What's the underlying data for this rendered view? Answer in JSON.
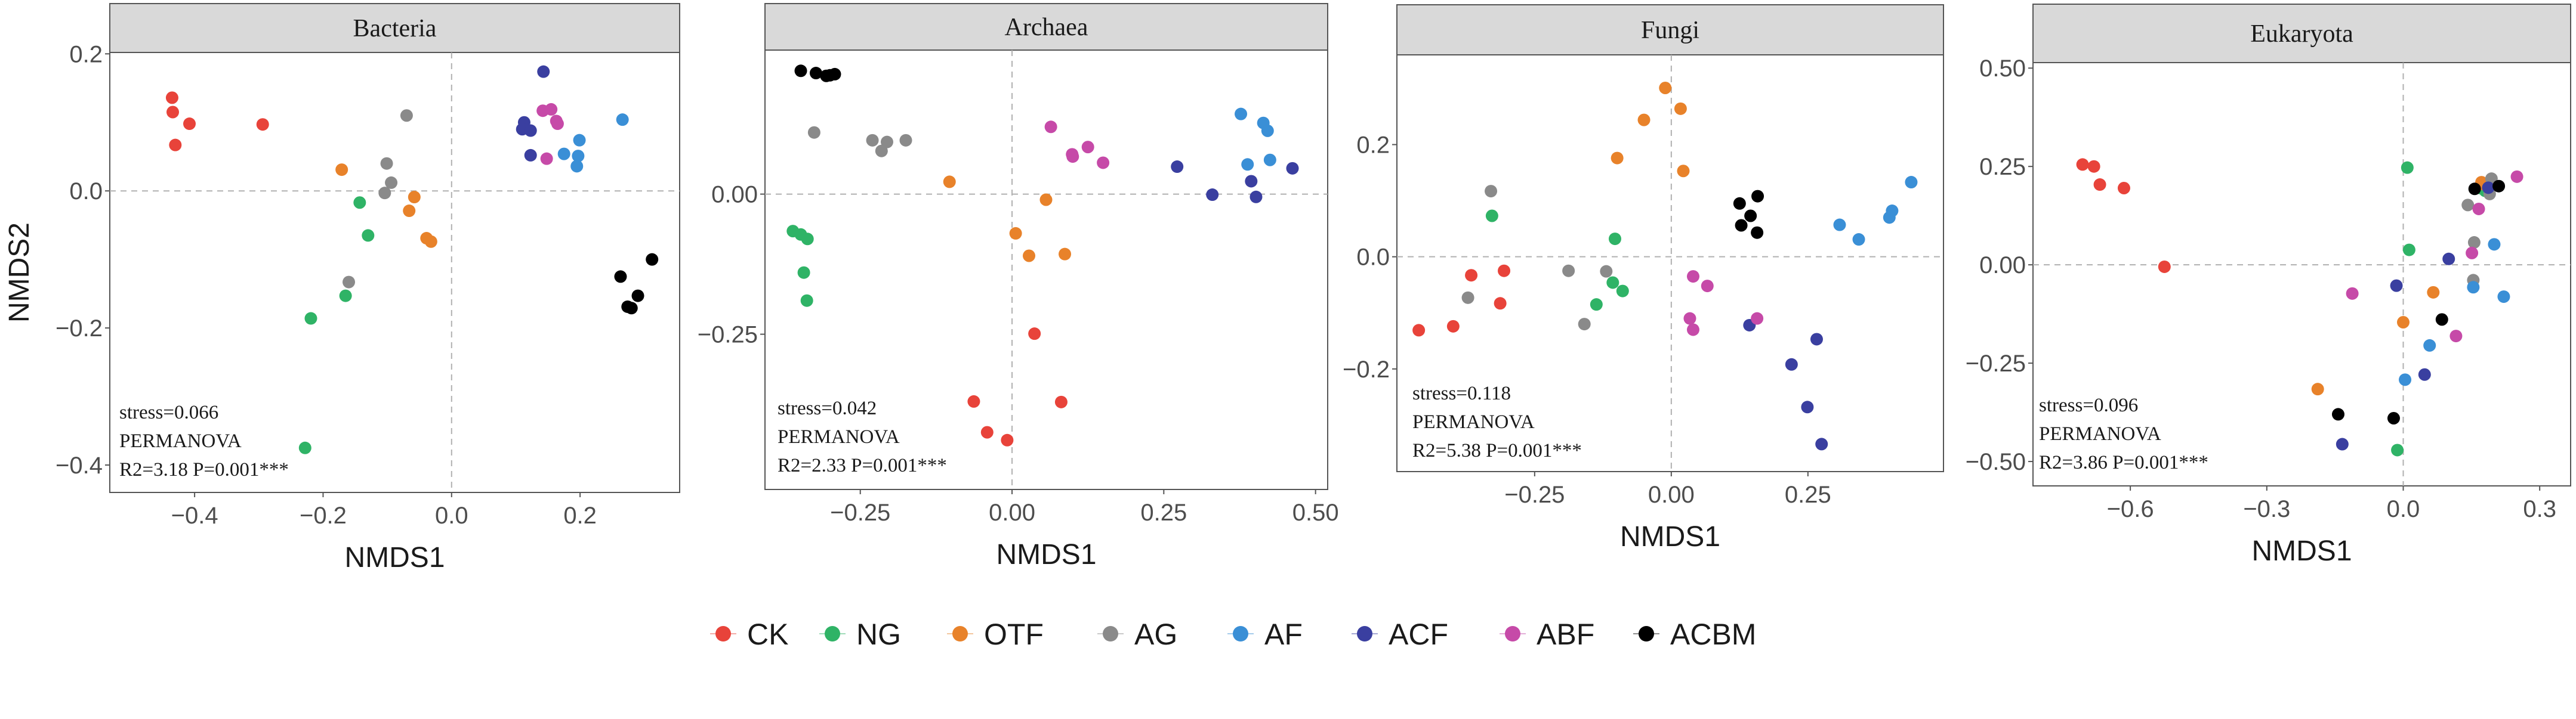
{
  "chart_data": {
    "type": "scatter",
    "legend": {
      "placement": "bottom",
      "entries": [
        {
          "name": "CK",
          "color": "#e8433a"
        },
        {
          "name": "NG",
          "color": "#2fb366"
        },
        {
          "name": "OTF",
          "color": "#e8822a"
        },
        {
          "name": "AG",
          "color": "#8a8a8a"
        },
        {
          "name": "AF",
          "color": "#3a8fd6"
        },
        {
          "name": "ACF",
          "color": "#3a3fa0"
        },
        {
          "name": "ABF",
          "color": "#c64aa8"
        },
        {
          "name": "ACBM",
          "color": "#000000"
        }
      ]
    },
    "panels": [
      {
        "title": "Bacteria",
        "xlabel": "NMDS1",
        "ylabel": "NMDS2",
        "xlim": [
          -0.532,
          0.355
        ],
        "ylim": [
          -0.44,
          0.202
        ],
        "xticks": [
          -0.4,
          -0.2,
          0.0,
          0.2
        ],
        "xtick_labels": [
          "−0.4",
          "−0.2",
          "0.0",
          "0.2"
        ],
        "yticks": [
          -0.4,
          -0.2,
          0.0,
          0.2
        ],
        "ytick_labels": [
          "−0.4",
          "−0.2",
          "0.0",
          "0.2"
        ],
        "annotation": [
          "stress=0.066",
          "PERMANOVA",
          "R2=3.18  P=0.001***"
        ],
        "series": [
          {
            "name": "CK",
            "points": [
              [
                -0.435,
                0.136
              ],
              [
                -0.434,
                0.115
              ],
              [
                -0.408,
                0.098
              ],
              [
                -0.43,
                0.067
              ],
              [
                -0.294,
                0.097
              ]
            ]
          },
          {
            "name": "NG",
            "points": [
              [
                -0.143,
                -0.017
              ],
              [
                -0.13,
                -0.065
              ],
              [
                -0.165,
                -0.153
              ],
              [
                -0.219,
                -0.186
              ],
              [
                -0.228,
                -0.375
              ]
            ]
          },
          {
            "name": "OTF",
            "points": [
              [
                -0.171,
                0.031
              ],
              [
                -0.058,
                -0.009
              ],
              [
                -0.066,
                -0.029
              ],
              [
                -0.039,
                -0.069
              ],
              [
                -0.032,
                -0.074
              ]
            ]
          },
          {
            "name": "AG",
            "points": [
              [
                -0.07,
                0.11
              ],
              [
                -0.101,
                0.04
              ],
              [
                -0.094,
                0.012
              ],
              [
                -0.104,
                -0.003
              ],
              [
                -0.16,
                -0.133
              ]
            ]
          },
          {
            "name": "AF",
            "points": [
              [
                0.266,
                0.104
              ],
              [
                0.199,
                0.074
              ],
              [
                0.175,
                0.054
              ],
              [
                0.197,
                0.051
              ],
              [
                0.195,
                0.036
              ]
            ]
          },
          {
            "name": "ACF",
            "points": [
              [
                0.143,
                0.174
              ],
              [
                0.113,
                0.1
              ],
              [
                0.11,
                0.09
              ],
              [
                0.123,
                0.088
              ],
              [
                0.123,
                0.052
              ]
            ]
          },
          {
            "name": "ABF",
            "points": [
              [
                0.142,
                0.117
              ],
              [
                0.155,
                0.119
              ],
              [
                0.163,
                0.102
              ],
              [
                0.148,
                0.047
              ],
              [
                0.165,
                0.098
              ]
            ]
          },
          {
            "name": "ACBM",
            "points": [
              [
                0.263,
                -0.125
              ],
              [
                0.29,
                -0.153
              ],
              [
                0.274,
                -0.169
              ],
              [
                0.28,
                -0.171
              ],
              [
                0.312,
                -0.1
              ]
            ]
          }
        ]
      },
      {
        "title": "Archaea",
        "xlabel": "NMDS1",
        "ylabel": "",
        "xlim": [
          -0.407,
          0.52
        ],
        "ylim": [
          -0.527,
          0.257
        ],
        "xticks": [
          -0.25,
          0.0,
          0.25,
          0.5
        ],
        "xtick_labels": [
          "−0.25",
          "0.00",
          "0.25",
          "0.50"
        ],
        "yticks": [
          -0.25,
          0.0
        ],
        "ytick_labels": [
          "−0.25",
          "0.00"
        ],
        "annotation": [
          "stress=0.042",
          "PERMANOVA",
          "R2=2.33 P=0.001***"
        ],
        "series": [
          {
            "name": "CK",
            "points": [
              [
                0.037,
                -0.249
              ],
              [
                -0.063,
                -0.37
              ],
              [
                0.081,
                -0.371
              ],
              [
                -0.041,
                -0.425
              ],
              [
                -0.008,
                -0.439
              ]
            ]
          },
          {
            "name": "NG",
            "points": [
              [
                -0.361,
                -0.066
              ],
              [
                -0.348,
                -0.072
              ],
              [
                -0.337,
                -0.08
              ],
              [
                -0.343,
                -0.14
              ],
              [
                -0.338,
                -0.19
              ]
            ]
          },
          {
            "name": "OTF",
            "points": [
              [
                -0.103,
                0.022
              ],
              [
                0.056,
                -0.01
              ],
              [
                0.006,
                -0.07
              ],
              [
                0.028,
                -0.11
              ],
              [
                0.087,
                -0.107
              ]
            ]
          },
          {
            "name": "AG",
            "points": [
              [
                -0.326,
                0.11
              ],
              [
                -0.23,
                0.096
              ],
              [
                -0.215,
                0.077
              ],
              [
                -0.206,
                0.093
              ],
              [
                -0.175,
                0.096
              ]
            ]
          },
          {
            "name": "AF",
            "points": [
              [
                0.377,
                0.143
              ],
              [
                0.414,
                0.127
              ],
              [
                0.421,
                0.113
              ],
              [
                0.388,
                0.053
              ],
              [
                0.425,
                0.061
              ]
            ]
          },
          {
            "name": "ACF",
            "points": [
              [
                0.272,
                0.049
              ],
              [
                0.33,
                -0.001
              ],
              [
                0.394,
                0.023
              ],
              [
                0.402,
                -0.005
              ],
              [
                0.462,
                0.046
              ]
            ]
          },
          {
            "name": "ABF",
            "points": [
              [
                0.064,
                0.12
              ],
              [
                0.099,
                0.071
              ],
              [
                0.1,
                0.067
              ],
              [
                0.125,
                0.084
              ],
              [
                0.15,
                0.056
              ]
            ]
          },
          {
            "name": "ACBM",
            "points": [
              [
                -0.348,
                0.22
              ],
              [
                -0.323,
                0.216
              ],
              [
                -0.306,
                0.211
              ],
              [
                -0.292,
                0.214
              ],
              [
                -0.3,
                0.212
              ]
            ]
          }
        ]
      },
      {
        "title": "Fungi",
        "xlabel": "NMDS1",
        "ylabel": "",
        "xlim": [
          -0.502,
          0.498
        ],
        "ylim": [
          -0.383,
          0.36
        ],
        "xticks": [
          -0.25,
          0.0,
          0.25
        ],
        "xtick_labels": [
          "−0.25",
          "0.00",
          "0.25"
        ],
        "yticks": [
          -0.2,
          0.0,
          0.2
        ],
        "ytick_labels": [
          "−0.2",
          "0.0",
          "0.2"
        ],
        "annotation": [
          "stress=0.118",
          "PERMANOVA",
          "R2=5.38 P=0.001***"
        ],
        "series": [
          {
            "name": "CK",
            "points": [
              [
                -0.366,
                -0.033
              ],
              [
                -0.306,
                -0.025
              ],
              [
                -0.313,
                -0.083
              ],
              [
                -0.399,
                -0.124
              ],
              [
                -0.462,
                -0.131
              ]
            ]
          },
          {
            "name": "NG",
            "points": [
              [
                -0.328,
                0.073
              ],
              [
                -0.103,
                0.032
              ],
              [
                -0.107,
                -0.046
              ],
              [
                -0.089,
                -0.061
              ],
              [
                -0.137,
                -0.085
              ]
            ]
          },
          {
            "name": "OTF",
            "points": [
              [
                -0.011,
                0.301
              ],
              [
                0.017,
                0.264
              ],
              [
                -0.05,
                0.244
              ],
              [
                -0.099,
                0.176
              ],
              [
                0.022,
                0.153
              ]
            ]
          },
          {
            "name": "AG",
            "points": [
              [
                -0.33,
                0.117
              ],
              [
                -0.188,
                -0.025
              ],
              [
                -0.119,
                -0.026
              ],
              [
                -0.372,
                -0.073
              ],
              [
                -0.159,
                -0.12
              ]
            ]
          },
          {
            "name": "AF",
            "points": [
              [
                0.439,
                0.133
              ],
              [
                0.308,
                0.057
              ],
              [
                0.343,
                0.031
              ],
              [
                0.399,
                0.07
              ],
              [
                0.404,
                0.082
              ]
            ]
          },
          {
            "name": "ACF",
            "points": [
              [
                0.143,
                -0.122
              ],
              [
                0.266,
                -0.147
              ],
              [
                0.22,
                -0.192
              ],
              [
                0.249,
                -0.268
              ],
              [
                0.275,
                -0.334
              ]
            ]
          },
          {
            "name": "ABF",
            "points": [
              [
                0.04,
                -0.035
              ],
              [
                0.066,
                -0.052
              ],
              [
                0.034,
                -0.11
              ],
              [
                0.04,
                -0.13
              ],
              [
                0.157,
                -0.11
              ]
            ]
          },
          {
            "name": "ACBM",
            "points": [
              [
                0.125,
                0.095
              ],
              [
                0.158,
                0.108
              ],
              [
                0.145,
                0.073
              ],
              [
                0.128,
                0.056
              ],
              [
                0.157,
                0.043
              ]
            ]
          }
        ]
      },
      {
        "title": "Eukaryota",
        "xlabel": "NMDS1",
        "ylabel": "",
        "xlim": [
          -0.814,
          0.368
        ],
        "ylim": [
          -0.562,
          0.514
        ],
        "xticks": [
          -0.6,
          -0.3,
          0.0,
          0.3
        ],
        "xtick_labels": [
          "−0.6",
          "−0.3",
          "0.0",
          "0.3"
        ],
        "yticks": [
          -0.5,
          -0.25,
          0.0,
          0.25,
          0.5
        ],
        "ytick_labels": [
          "−0.50",
          "−0.25",
          "0.00",
          "0.25",
          "0.50"
        ],
        "annotation": [
          "stress=0.096",
          "PERMANOVA",
          "R2=3.86 P=0.001***"
        ],
        "series": [
          {
            "name": "CK",
            "points": [
              [
                -0.705,
                0.255
              ],
              [
                -0.68,
                0.25
              ],
              [
                -0.667,
                0.204
              ],
              [
                -0.614,
                0.195
              ],
              [
                -0.525,
                -0.005
              ]
            ]
          },
          {
            "name": "NG",
            "points": [
              [
                0.009,
                0.247
              ],
              [
                0.013,
                0.038
              ],
              [
                -0.013,
                -0.471
              ],
              [
                0.18,
                0.188
              ],
              [
                0.17,
                0.195
              ]
            ]
          },
          {
            "name": "OTF",
            "points": [
              [
                0.066,
                -0.07
              ],
              [
                0.0,
                -0.146
              ],
              [
                -0.188,
                -0.316
              ],
              [
                0.172,
                0.21
              ],
              [
                0.176,
                0.205
              ]
            ]
          },
          {
            "name": "AG",
            "points": [
              [
                0.142,
                0.152
              ],
              [
                0.156,
                0.057
              ],
              [
                0.154,
                -0.039
              ],
              [
                0.194,
                0.219
              ],
              [
                0.19,
                0.18
              ]
            ]
          },
          {
            "name": "AF",
            "points": [
              [
                0.2,
                0.052
              ],
              [
                0.154,
                -0.057
              ],
              [
                0.221,
                -0.081
              ],
              [
                0.058,
                -0.205
              ],
              [
                0.004,
                -0.292
              ]
            ]
          },
          {
            "name": "ACF",
            "points": [
              [
                0.1,
                0.015
              ],
              [
                -0.015,
                -0.053
              ],
              [
                0.047,
                -0.279
              ],
              [
                -0.134,
                -0.456
              ],
              [
                0.187,
                0.196
              ]
            ]
          },
          {
            "name": "ABF",
            "points": [
              [
                0.25,
                0.224
              ],
              [
                0.166,
                0.142
              ],
              [
                0.151,
                0.03
              ],
              [
                -0.112,
                -0.073
              ],
              [
                0.116,
                -0.181
              ]
            ]
          },
          {
            "name": "ACBM",
            "points": [
              [
                0.157,
                0.193
              ],
              [
                0.21,
                0.2
              ],
              [
                0.085,
                -0.139
              ],
              [
                -0.143,
                -0.38
              ],
              [
                -0.021,
                -0.39
              ]
            ]
          }
        ]
      }
    ]
  }
}
